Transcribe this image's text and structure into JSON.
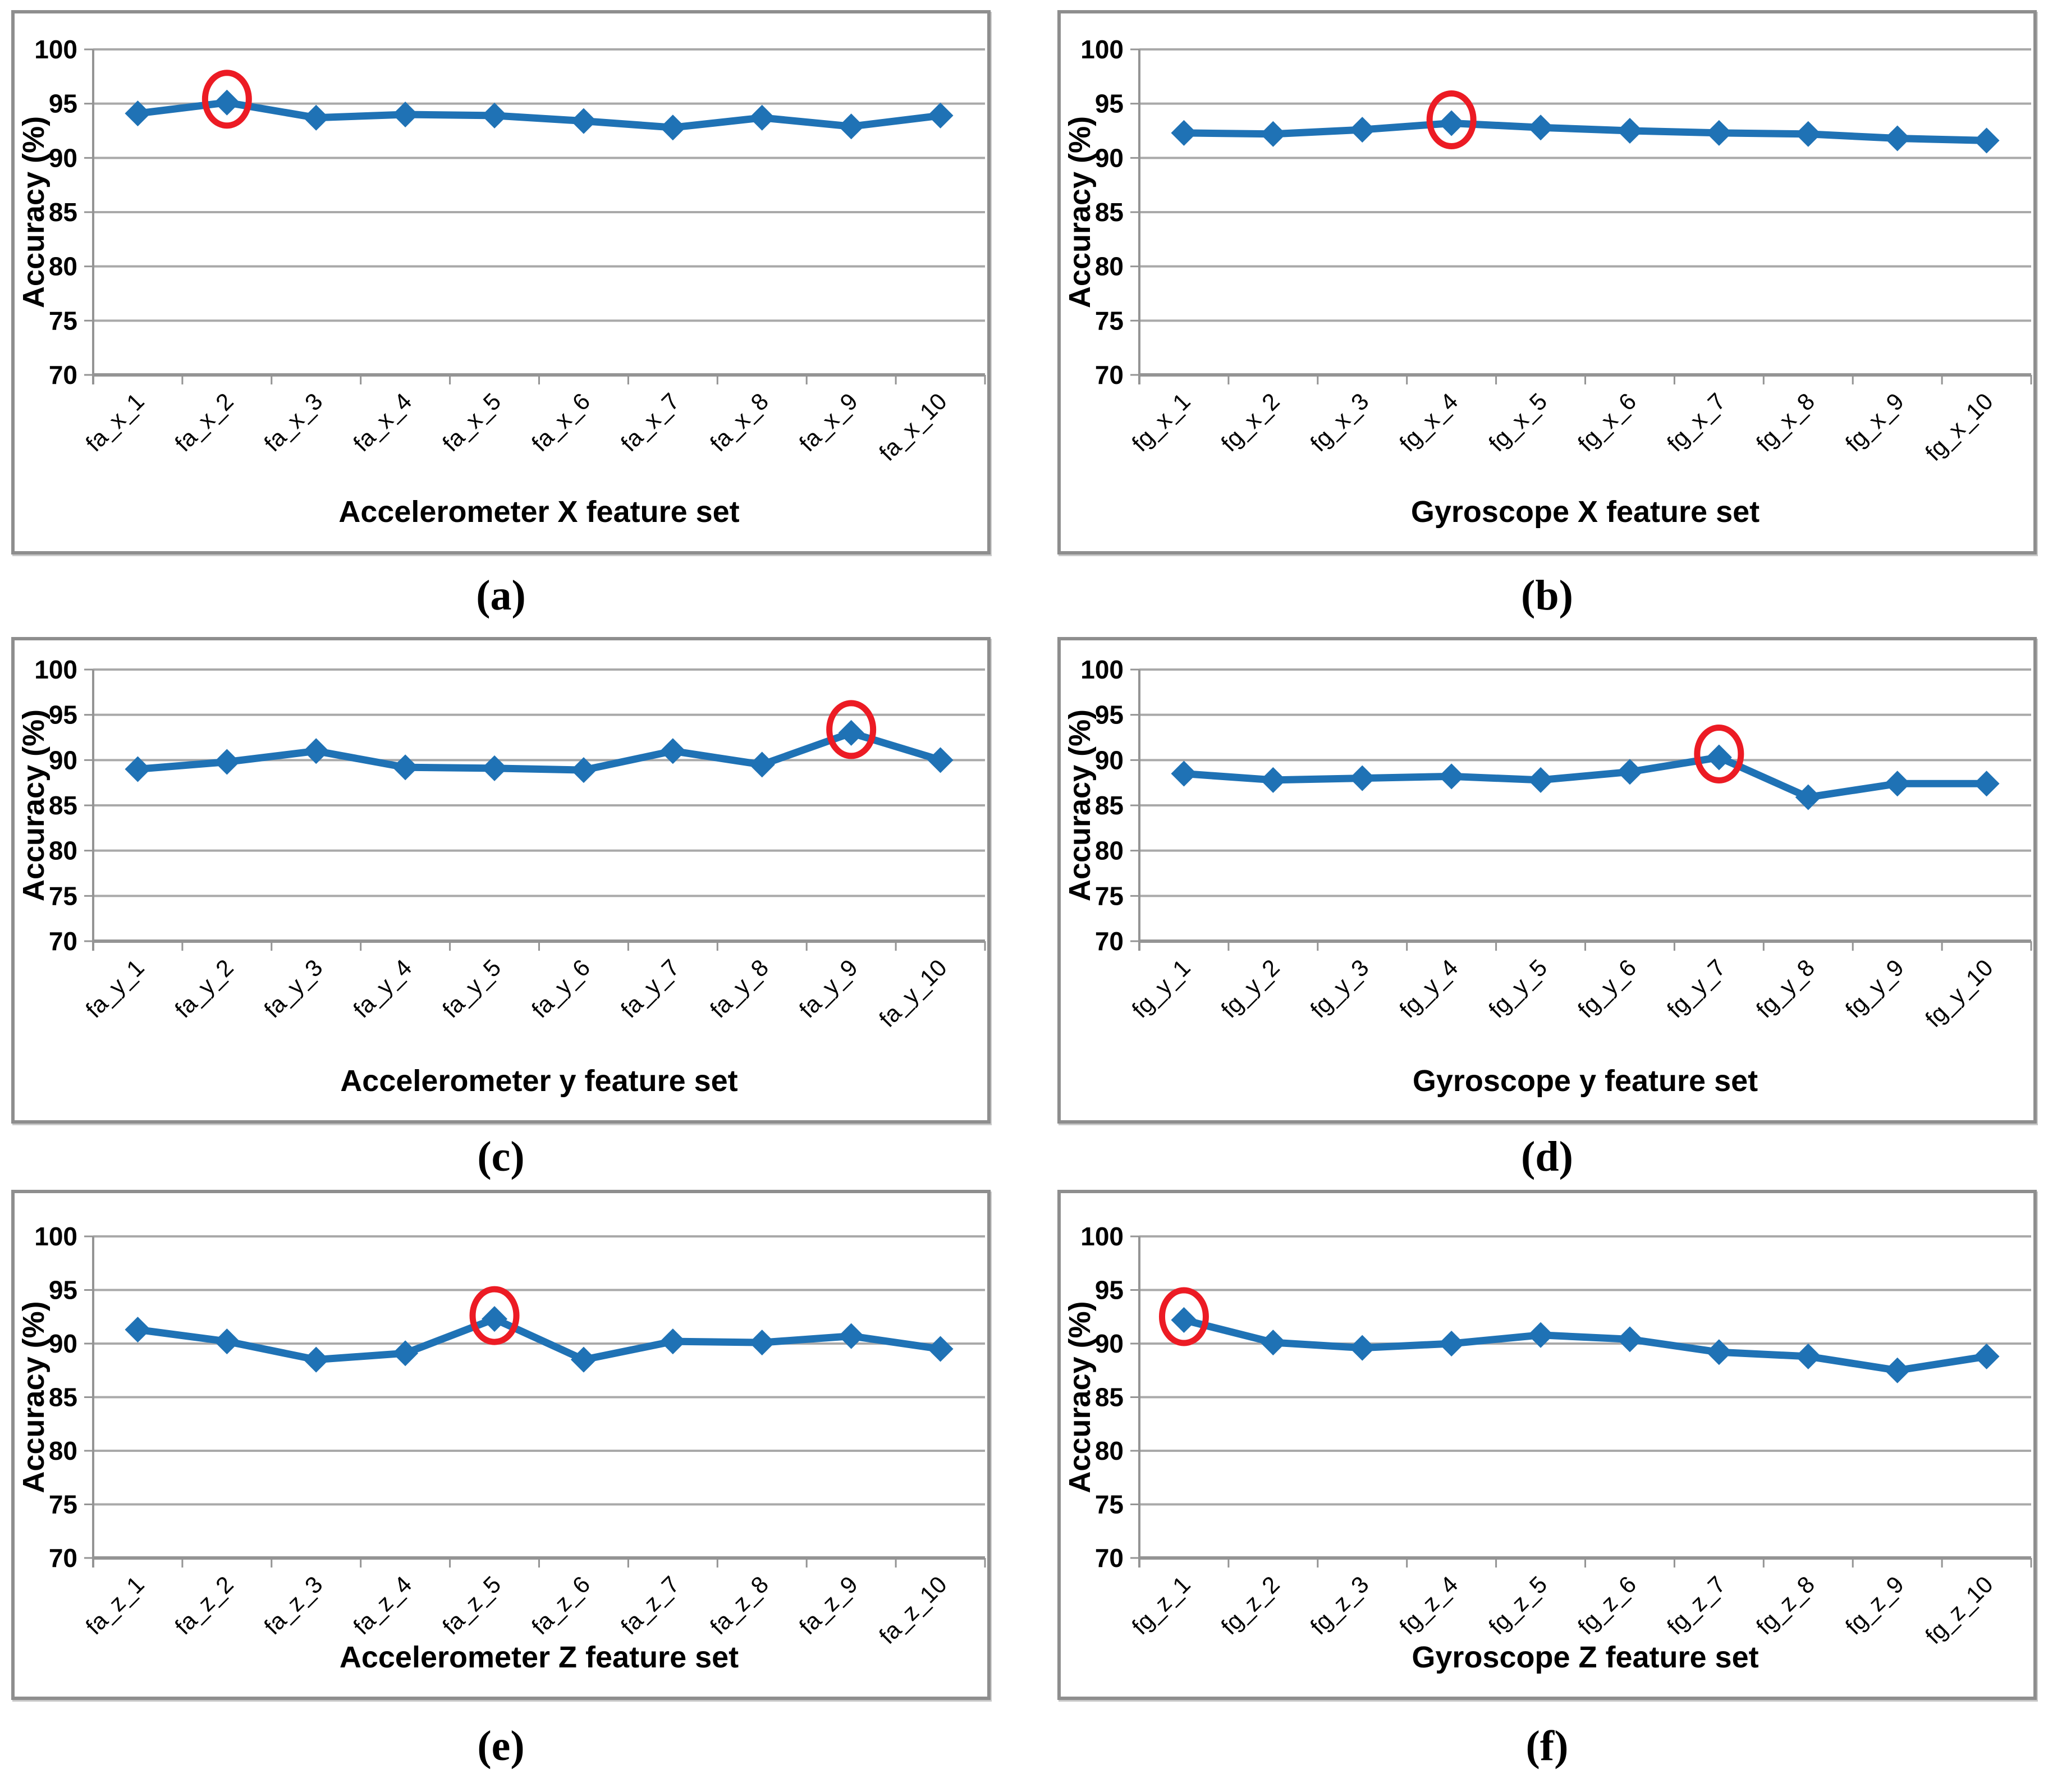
{
  "figure": {
    "ylabel": "Accuracy (%)",
    "ylim": [
      70,
      100
    ],
    "yticks": [
      70,
      75,
      80,
      85,
      90,
      95,
      100
    ],
    "colors": {
      "line": "#1f72b5",
      "marker": "#1f72b5",
      "highlight_circle": "#ec1b24",
      "gridline": "#a9a9a9",
      "axis": "#949494",
      "box_border": "#8e8e8e",
      "text": "#000000"
    }
  },
  "chart_data": [
    {
      "type": "line",
      "panel_label": "(a)",
      "xlabel": "Accelerometer X feature set",
      "ylabel": "Accuracy (%)",
      "categories": [
        "fa_x_1",
        "fa_x_2",
        "fa_x_3",
        "fa_x_4",
        "fa_x_5",
        "fa_x_6",
        "fa_x_7",
        "fa_x_8",
        "fa_x_9",
        "fa_x_10"
      ],
      "values": [
        94.1,
        95.1,
        93.7,
        94.0,
        93.9,
        93.4,
        92.8,
        93.7,
        92.9,
        93.9
      ],
      "circled_category": "fa_x_2",
      "circled_index": 1,
      "ylim": [
        70,
        100
      ],
      "grid": "horizontal",
      "legend": "none"
    },
    {
      "type": "line",
      "panel_label": "(b)",
      "xlabel": "Gyroscope X feature set",
      "ylabel": "Accuracy (%)",
      "categories": [
        "fg_x_1",
        "fg_x_2",
        "fg_x_3",
        "fg_x_4",
        "fg_x_5",
        "fg_x_6",
        "fg_x_7",
        "fg_x_8",
        "fg_x_9",
        "fg_x_10"
      ],
      "values": [
        92.3,
        92.2,
        92.6,
        93.2,
        92.8,
        92.5,
        92.3,
        92.2,
        91.8,
        91.6
      ],
      "circled_category": "fg_x_4",
      "circled_index": 3,
      "ylim": [
        70,
        100
      ],
      "grid": "horizontal",
      "legend": "none"
    },
    {
      "type": "line",
      "panel_label": "(c)",
      "xlabel": "Accelerometer y feature set",
      "ylabel": "Accuracy (%)",
      "categories": [
        "fa_y_1",
        "fa_y_2",
        "fa_y_3",
        "fa_y_4",
        "fa_y_5",
        "fa_y_6",
        "fa_y_7",
        "fa_y_8",
        "fa_y_9",
        "fa_y_10"
      ],
      "values": [
        89.0,
        89.8,
        91.0,
        89.2,
        89.1,
        88.9,
        91.0,
        89.5,
        93.0,
        90.0
      ],
      "circled_category": "fa_y_9",
      "circled_index": 8,
      "ylim": [
        70,
        100
      ],
      "grid": "horizontal",
      "legend": "none"
    },
    {
      "type": "line",
      "panel_label": "(d)",
      "xlabel": "Gyroscope y feature set",
      "ylabel": "Accuracy (%)",
      "categories": [
        "fg_y_1",
        "fg_y_2",
        "fg_y_3",
        "fg_y_4",
        "fg_y_5",
        "fg_y_6",
        "fg_y_7",
        "fg_y_8",
        "fg_y_9",
        "fg_y_10"
      ],
      "values": [
        88.5,
        87.8,
        88.0,
        88.2,
        87.8,
        88.7,
        90.3,
        85.9,
        87.4,
        87.4
      ],
      "circled_category": "fg_y_7",
      "circled_index": 6,
      "ylim": [
        70,
        100
      ],
      "grid": "horizontal",
      "legend": "none"
    },
    {
      "type": "line",
      "panel_label": "(e)",
      "xlabel": "Accelerometer Z feature set",
      "ylabel": "Accuracy (%)",
      "categories": [
        "fa_z_1",
        "fa_z_2",
        "fa_z_3",
        "fa_z_4",
        "fa_z_5",
        "fa_z_6",
        "fa_z_7",
        "fa_z_8",
        "fa_z_9",
        "fa_z_10"
      ],
      "values": [
        91.3,
        90.2,
        88.5,
        89.1,
        92.3,
        88.5,
        90.2,
        90.1,
        90.7,
        89.5
      ],
      "circled_category": "fa_z_5",
      "circled_index": 4,
      "ylim": [
        70,
        100
      ],
      "grid": "horizontal",
      "legend": "none"
    },
    {
      "type": "line",
      "panel_label": "(f)",
      "xlabel": "Gyroscope Z feature set",
      "ylabel": "Accuracy (%)",
      "categories": [
        "fg_z_1",
        "fg_z_2",
        "fg_z_3",
        "fg_z_4",
        "fg_z_5",
        "fg_z_6",
        "fg_z_7",
        "fg_z_8",
        "fg_z_9",
        "fg_z_10"
      ],
      "values": [
        92.2,
        90.1,
        89.6,
        90.0,
        90.8,
        90.4,
        89.2,
        88.8,
        87.5,
        88.8
      ],
      "circled_category": "fg_z_1",
      "circled_index": 0,
      "ylim": [
        70,
        100
      ],
      "grid": "horizontal",
      "legend": "none"
    }
  ]
}
